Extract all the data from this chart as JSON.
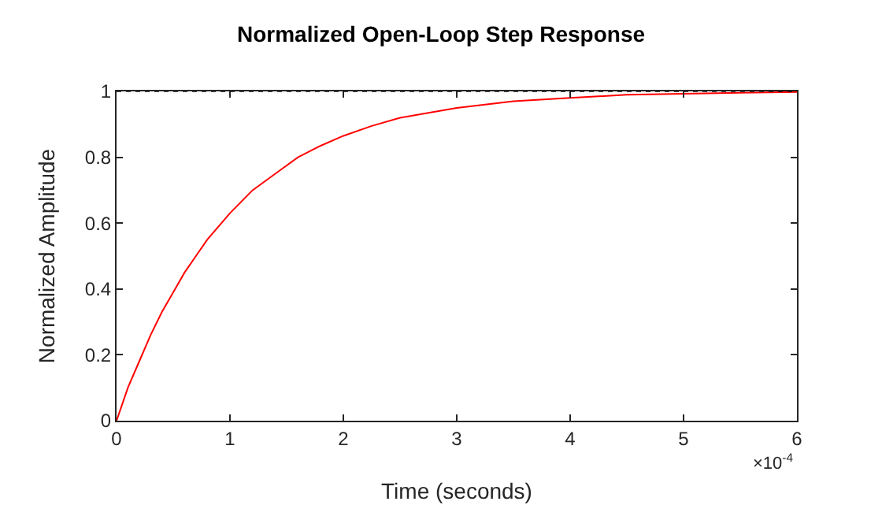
{
  "chart_data": {
    "type": "line",
    "title": "Normalized Open-Loop Step Response",
    "xlabel": "Time (seconds)",
    "ylabel": "Normalized Amplitude",
    "x": [
      0,
      0.1,
      0.2,
      0.3,
      0.4,
      0.5,
      0.6,
      0.7,
      0.8,
      0.9,
      1,
      1.2,
      1.4,
      1.6,
      1.8,
      2,
      2.25,
      2.5,
      2.75,
      3,
      3.5,
      4,
      4.5,
      5,
      5.5,
      6
    ],
    "series": [
      {
        "color": "#ff0000",
        "values": [
          0,
          0.1,
          0.18,
          0.26,
          0.33,
          0.39,
          0.45,
          0.5,
          0.55,
          0.59,
          0.63,
          0.7,
          0.75,
          0.8,
          0.835,
          0.865,
          0.895,
          0.92,
          0.935,
          0.95,
          0.97,
          0.98,
          0.99,
          0.993,
          0.996,
          0.998
        ]
      }
    ],
    "xlim": [
      0,
      6
    ],
    "xticks": [
      0,
      1,
      2,
      3,
      4,
      5,
      6
    ],
    "ylim": [
      0,
      1
    ],
    "yticks": [
      0,
      0.2,
      0.4,
      0.6,
      0.8,
      1
    ],
    "ref_lines": [
      {
        "axis": "y",
        "value": 1,
        "label": null,
        "color": "#000000",
        "line_style": "dotted"
      }
    ],
    "annotations": [
      "×10$^{-4}$"
    ],
    "marker": "none",
    "line_style": "solid"
  }
}
